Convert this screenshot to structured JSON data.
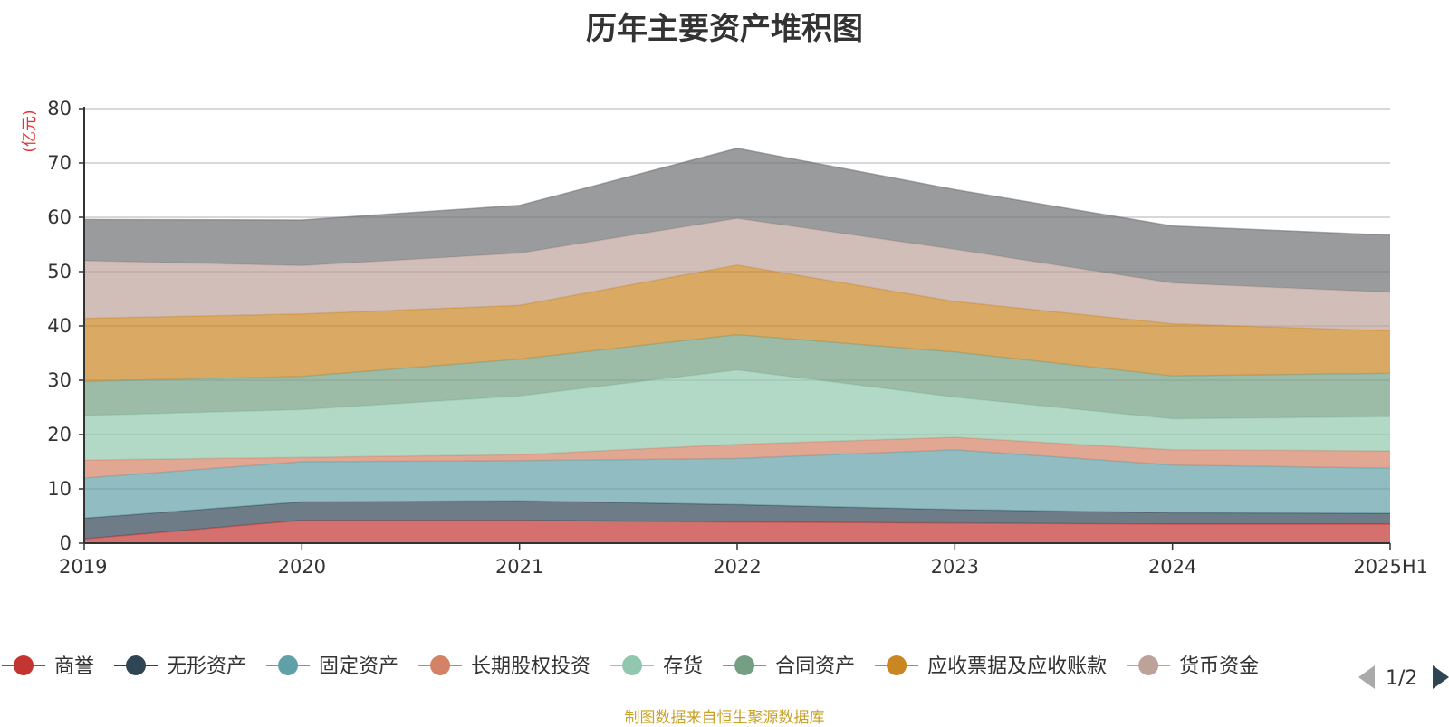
{
  "chart_data": {
    "type": "area",
    "stacked": true,
    "title": "历年主要资产堆积图",
    "y_unit": "(亿元)",
    "ylim": [
      0,
      80
    ],
    "y_ticks": [
      0,
      10,
      20,
      30,
      40,
      50,
      60,
      70,
      80
    ],
    "grid": true,
    "categories": [
      "2019",
      "2020",
      "2021",
      "2022",
      "2023",
      "2024",
      "2025H1"
    ],
    "legend_position": "bottom",
    "legend_page": "1/2",
    "series": [
      {
        "name": "商誉",
        "color": "#c23531",
        "values": [
          0.8,
          4.2,
          4.2,
          3.9,
          3.7,
          3.5,
          3.5
        ]
      },
      {
        "name": "无形资产",
        "color": "#2f4554",
        "values": [
          3.8,
          3.4,
          3.6,
          3.2,
          2.5,
          2.1,
          2.0
        ]
      },
      {
        "name": "固定资产",
        "color": "#61a0a8",
        "values": [
          7.4,
          7.4,
          7.4,
          8.5,
          11.0,
          8.8,
          8.3
        ]
      },
      {
        "name": "长期股权投资",
        "color": "#d48265",
        "values": [
          3.3,
          0.8,
          1.1,
          2.6,
          2.3,
          2.8,
          3.2
        ]
      },
      {
        "name": "存货",
        "color": "#91c7ae",
        "values": [
          8.2,
          8.8,
          10.8,
          13.7,
          7.4,
          5.7,
          6.3
        ]
      },
      {
        "name": "合同资产",
        "color": "#749f83",
        "values": [
          6.3,
          6.1,
          6.8,
          6.5,
          8.3,
          7.9,
          8.0
        ]
      },
      {
        "name": "应收票据及应收账款",
        "color": "#ca8622",
        "values": [
          11.6,
          11.5,
          9.9,
          12.8,
          9.3,
          9.6,
          7.8
        ]
      },
      {
        "name": "货币资金",
        "color": "#bda29a",
        "values": [
          10.6,
          8.9,
          9.6,
          8.6,
          9.6,
          7.5,
          7.1
        ]
      },
      {
        "name": "",
        "color": "#6e7074",
        "values": [
          7.6,
          8.4,
          8.8,
          12.9,
          11.0,
          10.5,
          10.5
        ]
      }
    ]
  },
  "footer": {
    "source": "制图数据来自恒生聚源数据库"
  }
}
